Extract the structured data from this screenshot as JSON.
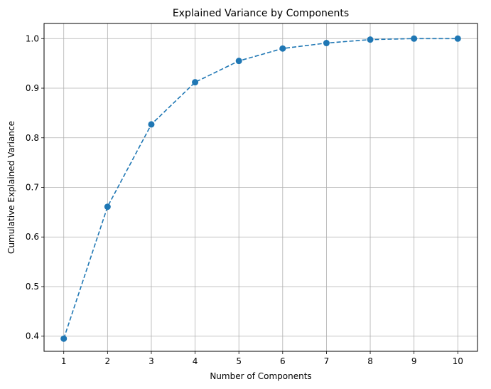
{
  "chart_data": {
    "type": "line",
    "title": "Explained Variance by Components",
    "xlabel": "Number of Components",
    "ylabel": "Cumulative Explained Variance",
    "x": [
      1,
      2,
      3,
      4,
      5,
      6,
      7,
      8,
      9,
      10
    ],
    "series": [
      {
        "values": [
          0.395,
          0.661,
          0.827,
          0.912,
          0.955,
          0.98,
          0.991,
          0.998,
          1.0,
          1.0
        ],
        "color": "#1f77b4",
        "line_style": "dashed",
        "marker": "circle"
      }
    ],
    "xlim": [
      0.55,
      10.45
    ],
    "ylim": [
      0.3695,
      1.0305
    ],
    "xticks": [
      "1",
      "2",
      "3",
      "4",
      "5",
      "6",
      "7",
      "8",
      "9",
      "10"
    ],
    "yticks": [
      "0.4",
      "0.5",
      "0.6",
      "0.7",
      "0.8",
      "0.9",
      "1.0"
    ],
    "grid": true
  }
}
